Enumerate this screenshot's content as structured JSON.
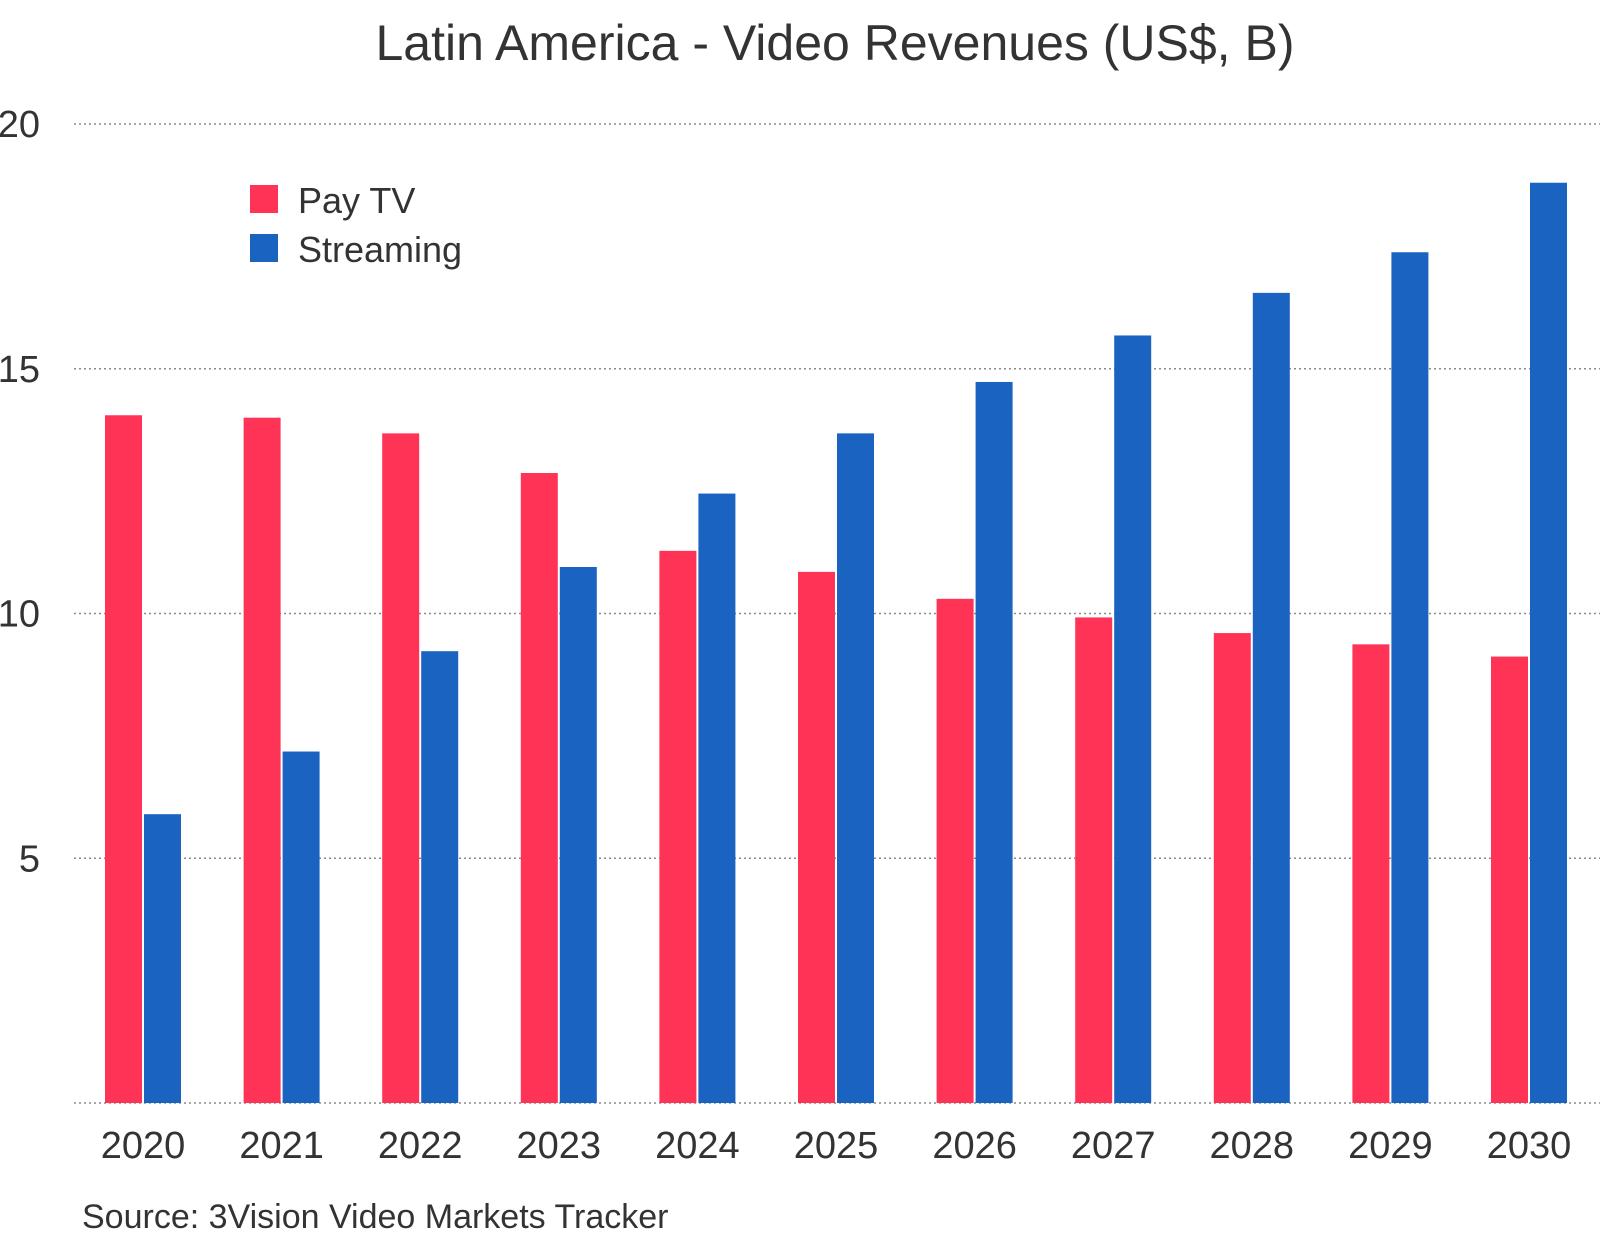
{
  "chart_data": {
    "type": "bar",
    "title": "Latin America - Video Revenues (US$, B)",
    "xlabel": "",
    "ylabel": "",
    "ylim": [
      0,
      20
    ],
    "yticks": [
      "5",
      "10",
      "15",
      "20"
    ],
    "grid": true,
    "legend_position": "top-left",
    "categories": [
      "2020",
      "2021",
      "2022",
      "2023",
      "2024",
      "2025",
      "2026",
      "2027",
      "2028",
      "2029",
      "2030"
    ],
    "series": [
      {
        "name": "Pay TV",
        "color": "#ff3355",
        "values": [
          14.05,
          14.0,
          13.68,
          12.87,
          11.28,
          10.85,
          10.3,
          9.92,
          9.6,
          9.37,
          9.12
        ]
      },
      {
        "name": "Streaming",
        "color": "#1a63c1",
        "values": [
          5.9,
          7.18,
          9.23,
          10.95,
          12.45,
          13.68,
          14.73,
          15.68,
          16.55,
          17.38,
          18.8
        ]
      }
    ],
    "source": "Source: 3Vision Video Markets Tracker"
  }
}
